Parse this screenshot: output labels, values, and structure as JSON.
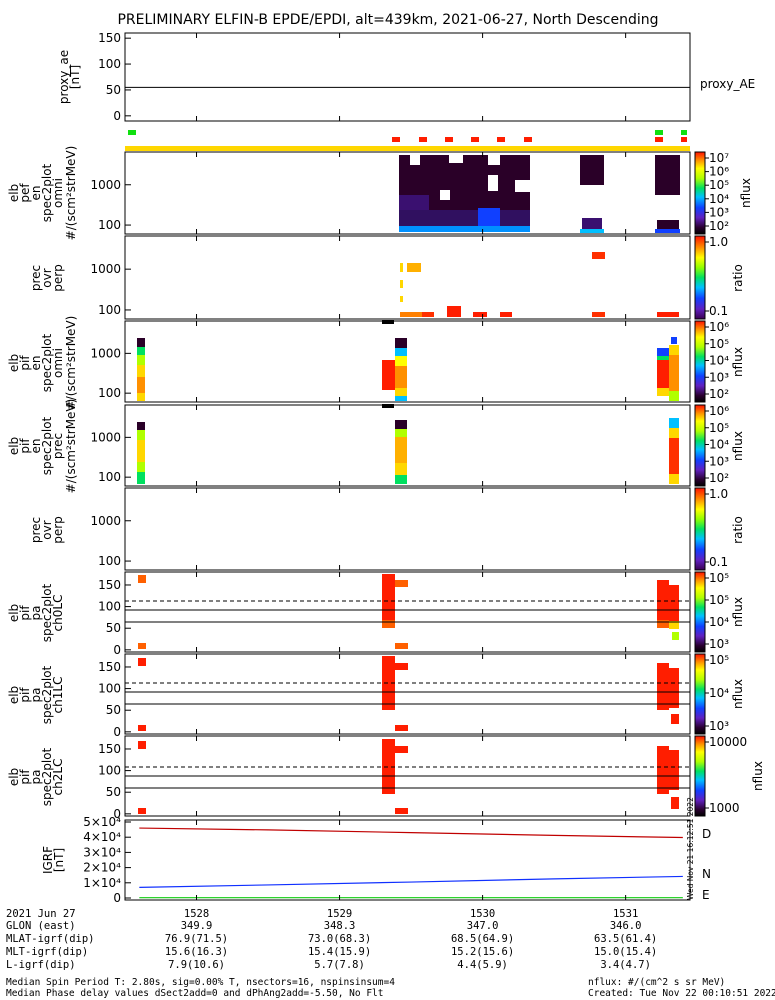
{
  "title": "PRELIMINARY ELFIN-B EPDE/EPDI, alt=439km, 2021-06-27, North Descending",
  "x_axis": {
    "range": [
      1527.5,
      1531.45
    ],
    "ticks": [
      "1528",
      "1529",
      "1530",
      "1531"
    ],
    "date_label": "2021 Jun 27",
    "rows": [
      {
        "label": "GLON (east)",
        "values": [
          "349.9",
          "348.3",
          "347.0",
          "346.0"
        ]
      },
      {
        "label": "MLAT-igrf(dip)",
        "values": [
          "76.9(71.5)",
          "73.0(68.3)",
          "68.5(64.9)",
          "63.5(61.4)"
        ]
      },
      {
        "label": "MLT-igrf(dip)",
        "values": [
          "15.6(16.3)",
          "15.4(15.9)",
          "15.2(15.6)",
          "15.0(15.4)"
        ]
      },
      {
        "label": "L-igrf(dip)",
        "values": [
          "7.9(10.6)",
          "5.7(7.8)",
          "4.4(5.9)",
          "3.4(4.7)"
        ]
      }
    ]
  },
  "footer": {
    "line1": "Median Spin Period T: 2.80s, sig=0.00% T, nsectors=16, nspinsinsum=4",
    "line2": "Median Phase delay values dSect2add=0 and dPhAng2add=-5.50, No Flt",
    "units": "nflux: #/(cm^2 s sr MeV)",
    "created": "Created: Tue Nov 22 00:10:51 2022"
  },
  "side_stamp": "Wed Nov 21 16:12:51 2022",
  "colors": {
    "red": "#ff1e00",
    "yellow": "#ffd700",
    "green": "#10e010",
    "blue": "#1030ff",
    "darkred": "#c00000",
    "green_line": "#11cc11"
  },
  "panels": [
    {
      "id": "proxy_ae",
      "ylabel": [
        "proxy_ae",
        "[nT]"
      ],
      "yticks": [
        "0",
        "50",
        "100",
        "150"
      ],
      "yrange": [
        -10,
        160
      ],
      "right_label": "proxy_AE",
      "line_value": 55
    },
    {
      "id": "elb_pef_en",
      "ylabel": [
        "elb",
        "pef",
        "en",
        "spec2plot",
        "omni",
        "#/(scm²strMeV)"
      ],
      "yticks": [
        "100",
        "1000"
      ],
      "log": true,
      "cbar_ticks": [
        "10⁷",
        "10⁶",
        "10⁵",
        "10⁴",
        "10³",
        "10²"
      ],
      "cbar_label": "nflux"
    },
    {
      "id": "prec_ovr_perp_e",
      "ylabel": [
        "prec",
        "ovr",
        "perp"
      ],
      "yticks": [
        "100",
        "1000"
      ],
      "log": true,
      "cbar_ticks": [
        "1.0",
        "0.1"
      ],
      "cbar_label": "ratio"
    },
    {
      "id": "elb_pif_en_omni",
      "ylabel": [
        "elb",
        "pif",
        "en",
        "spec2plot",
        "omni",
        "#/(scm²strMeV)"
      ],
      "yticks": [
        "100",
        "1000"
      ],
      "log": true,
      "cbar_ticks": [
        "10⁶",
        "10⁵",
        "10⁴",
        "10³",
        "10²"
      ],
      "cbar_label": "nflux"
    },
    {
      "id": "elb_pif_en_prec",
      "ylabel": [
        "elb",
        "pif",
        "en",
        "spec2plot",
        "prec",
        "#/(scm²strMeV)"
      ],
      "yticks": [
        "100",
        "1000"
      ],
      "log": true,
      "cbar_ticks": [
        "10⁶",
        "10⁵",
        "10⁴",
        "10³",
        "10²"
      ],
      "cbar_label": "nflux"
    },
    {
      "id": "prec_ovr_perp_i",
      "ylabel": [
        "prec",
        "ovr",
        "perp"
      ],
      "yticks": [
        "100",
        "1000"
      ],
      "log": true,
      "cbar_ticks": [
        "1.0",
        "0.1"
      ],
      "cbar_label": "ratio"
    },
    {
      "id": "pa_ch0",
      "ylabel": [
        "elb",
        "pif",
        "pa",
        "spec2plot",
        "ch0LC"
      ],
      "yticks": [
        "0",
        "50",
        "100",
        "150"
      ],
      "yrange": [
        -5,
        180
      ],
      "cbar_ticks": [
        "10⁵",
        "10⁵",
        "10⁴",
        "10³"
      ],
      "cbar_label": "nflux"
    },
    {
      "id": "pa_ch1",
      "ylabel": [
        "elb",
        "pif",
        "pa",
        "spec2plot",
        "ch1LC"
      ],
      "yticks": [
        "0",
        "50",
        "100",
        "150"
      ],
      "yrange": [
        -5,
        180
      ],
      "cbar_ticks": [
        "10⁵",
        "10⁴",
        "10³"
      ],
      "cbar_label": "nflux"
    },
    {
      "id": "pa_ch2",
      "ylabel": [
        "elb",
        "pif",
        "pa",
        "spec2plot",
        "ch2LC"
      ],
      "yticks": [
        "0",
        "50",
        "100",
        "150"
      ],
      "yrange": [
        -5,
        180
      ],
      "cbar_ticks": [
        "10000",
        "1000"
      ],
      "cbar_label": "nflux"
    },
    {
      "id": "igrf",
      "ylabel": [
        "IGRF",
        "[nT]"
      ],
      "yticks": [
        "0",
        "1×10⁴",
        "2×10⁴",
        "3×10⁴",
        "4×10⁴",
        "5×10⁴"
      ],
      "yrange": [
        0,
        50000
      ],
      "series": [
        "D",
        "N",
        "E"
      ]
    }
  ],
  "chart_data": {
    "type": "line",
    "title": "PRELIMINARY ELFIN-B EPDE/EPDI, alt=439km, 2021-06-27, North Descending",
    "x": [
      1527.6,
      1528.5,
      1529.5,
      1530.5,
      1531.4
    ],
    "series": [
      {
        "name": "D",
        "values": [
          46000,
          44800,
          43000,
          41200,
          39800
        ]
      },
      {
        "name": "N",
        "values": [
          7000,
          8600,
          10500,
          12600,
          14200
        ]
      },
      {
        "name": "E",
        "values": [
          200,
          200,
          200,
          200,
          200
        ]
      }
    ],
    "proxy_ae": {
      "x": [
        1527.5,
        1531.45
      ],
      "values": [
        55,
        55
      ]
    },
    "pa_loss_cone_lines": {
      "dashed": 112,
      "solid": [
        88,
        67
      ]
    },
    "ylim": [
      0,
      50000
    ]
  }
}
